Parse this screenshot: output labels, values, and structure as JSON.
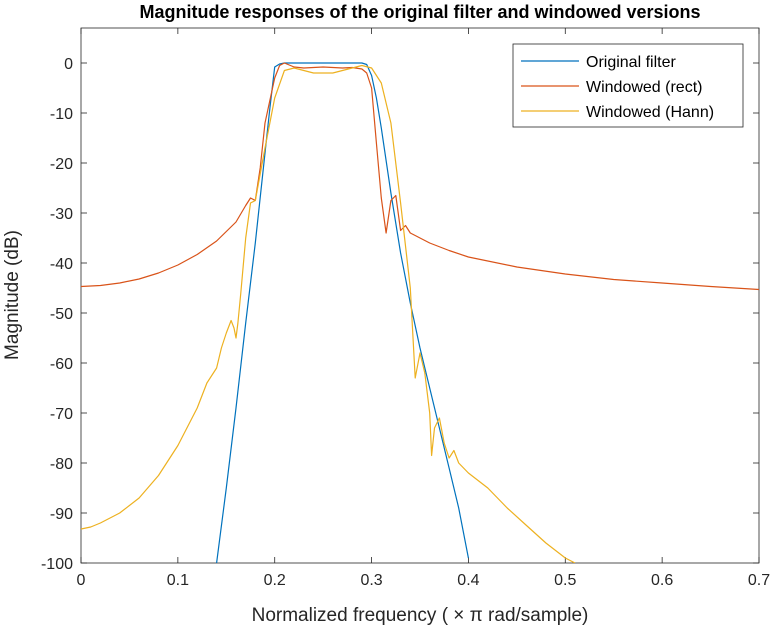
{
  "chart_data": {
    "type": "line",
    "title": "Magnitude responses of the original filter and windowed versions",
    "xlabel": "Normalized frequency ( × π rad/sample)",
    "ylabel": "Magnitude (dB)",
    "xlim": [
      0,
      0.7
    ],
    "ylim": [
      -100,
      7
    ],
    "xticks": [
      0,
      0.1,
      0.2,
      0.3,
      0.4,
      0.5,
      0.6,
      0.7
    ],
    "xtick_labels": [
      "0",
      "0.1",
      "0.2",
      "0.3",
      "0.4",
      "0.5",
      "0.6",
      "0.7"
    ],
    "yticks": [
      0,
      -10,
      -20,
      -30,
      -40,
      -50,
      -60,
      -70,
      -80,
      -90,
      -100
    ],
    "ytick_labels": [
      "0",
      "-10",
      "-20",
      "-30",
      "-40",
      "-50",
      "-60",
      "-70",
      "-80",
      "-90",
      "-100"
    ],
    "grid": false,
    "legend_position": "top-right",
    "series": [
      {
        "name": "Original filter",
        "color": "#0072BD",
        "x": [
          0.14,
          0.15,
          0.16,
          0.17,
          0.18,
          0.19,
          0.195,
          0.2,
          0.205,
          0.21,
          0.22,
          0.25,
          0.28,
          0.29,
          0.295,
          0.3,
          0.305,
          0.31,
          0.32,
          0.33,
          0.34,
          0.35,
          0.36,
          0.37,
          0.38,
          0.39,
          0.4
        ],
        "y": [
          -100,
          -85,
          -69,
          -52,
          -36,
          -18,
          -9,
          -0.8,
          -0.2,
          0,
          0,
          0,
          0,
          0,
          -0.3,
          -2.5,
          -7,
          -13,
          -26,
          -38,
          -48,
          -57,
          -65,
          -73,
          -81,
          -89,
          -99
        ]
      },
      {
        "name": "Windowed (rect)",
        "color": "#D95319",
        "x": [
          0,
          0.02,
          0.04,
          0.06,
          0.08,
          0.1,
          0.12,
          0.14,
          0.16,
          0.17,
          0.175,
          0.18,
          0.185,
          0.19,
          0.2,
          0.205,
          0.21,
          0.22,
          0.23,
          0.25,
          0.27,
          0.28,
          0.29,
          0.295,
          0.3,
          0.305,
          0.31,
          0.315,
          0.32,
          0.325,
          0.33,
          0.335,
          0.34,
          0.345,
          0.35,
          0.36,
          0.38,
          0.4,
          0.45,
          0.5,
          0.55,
          0.6,
          0.65,
          0.7
        ],
        "y": [
          -44.7,
          -44.5,
          -44.0,
          -43.2,
          -42.0,
          -40.4,
          -38.3,
          -35.6,
          -31.8,
          -28.5,
          -27.0,
          -27.5,
          -21.0,
          -12.0,
          -3.0,
          -0.5,
          0,
          -0.8,
          -1.0,
          -0.8,
          -1.0,
          -0.9,
          -1.2,
          -2.0,
          -5.0,
          -16.0,
          -27.0,
          -34.0,
          -27.5,
          -26.5,
          -33.5,
          -32.5,
          -34.0,
          -34.5,
          -35.0,
          -36.0,
          -37.5,
          -38.8,
          -40.8,
          -42.2,
          -43.3,
          -44.0,
          -44.7,
          -45.3
        ]
      },
      {
        "name": "Windowed (Hann)",
        "color": "#EDB120",
        "x": [
          0,
          0.01,
          0.02,
          0.04,
          0.06,
          0.08,
          0.1,
          0.12,
          0.13,
          0.14,
          0.145,
          0.15,
          0.155,
          0.158,
          0.16,
          0.162,
          0.165,
          0.17,
          0.175,
          0.18,
          0.19,
          0.2,
          0.21,
          0.22,
          0.24,
          0.26,
          0.28,
          0.29,
          0.3,
          0.31,
          0.32,
          0.33,
          0.34,
          0.345,
          0.35,
          0.355,
          0.36,
          0.362,
          0.365,
          0.37,
          0.375,
          0.38,
          0.385,
          0.39,
          0.4,
          0.42,
          0.44,
          0.46,
          0.48,
          0.5,
          0.51
        ],
        "y": [
          -93.2,
          -92.8,
          -92.0,
          -90.0,
          -87.0,
          -82.5,
          -76.5,
          -69.0,
          -64.0,
          -61.0,
          -57.0,
          -54.0,
          -51.5,
          -53.0,
          -55.0,
          -52.0,
          -46.0,
          -35.0,
          -28.0,
          -27.5,
          -17.0,
          -7.0,
          -1.5,
          -1.0,
          -2.0,
          -2.0,
          -1.0,
          -0.5,
          -1.0,
          -4.0,
          -12.0,
          -28.0,
          -45.0,
          -63.0,
          -58.0,
          -62.0,
          -70.0,
          -78.5,
          -73.0,
          -71.0,
          -76.0,
          -79.0,
          -77.5,
          -80.0,
          -82.0,
          -85.0,
          -89.0,
          -92.5,
          -96.0,
          -99.0,
          -100.0
        ]
      }
    ]
  }
}
